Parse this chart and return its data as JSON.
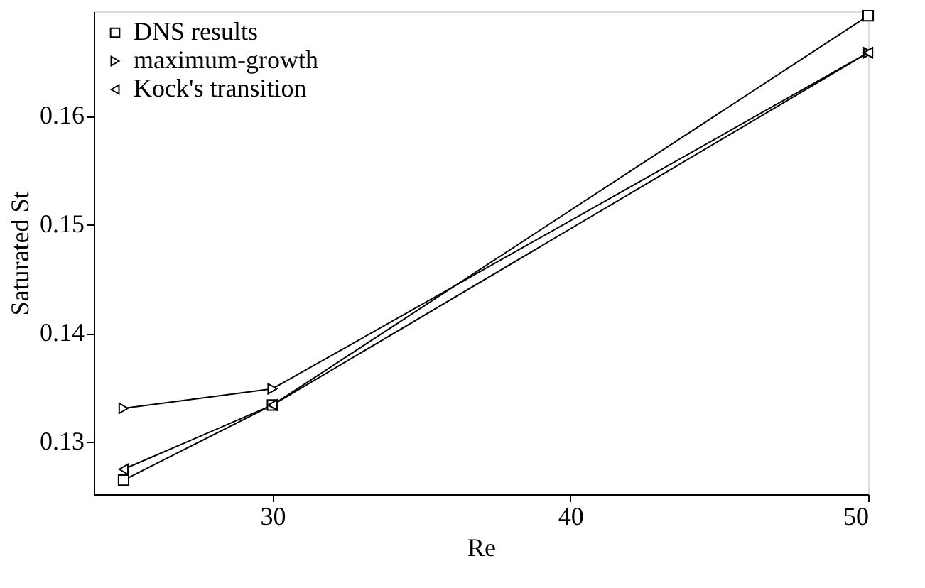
{
  "chart_data": {
    "type": "line",
    "xlabel": "Re",
    "ylabel": "Saturated St",
    "x": [
      25,
      30,
      50
    ],
    "series": [
      {
        "name": "DNS  results",
        "color": "#000000",
        "marker": "square",
        "values": [
          0.1265,
          0.1334,
          0.1692
        ]
      },
      {
        "name": "maximum-growth",
        "color": "#000000",
        "marker": "triangle-right",
        "values": [
          0.1331,
          0.1349,
          0.1658
        ]
      },
      {
        "name": "Kock's transition",
        "color": "#000000",
        "marker": "triangle-left",
        "values": [
          0.1275,
          0.1334,
          0.1658
        ]
      }
    ],
    "xlim": [
      24,
      50
    ],
    "xticks": [
      30,
      40,
      50
    ],
    "ylim": [
      0.1252,
      0.1696
    ],
    "yticks": [
      0.13,
      0.14,
      0.15,
      0.16
    ],
    "grid": false,
    "legend": "top left",
    "line_style": "solid"
  }
}
